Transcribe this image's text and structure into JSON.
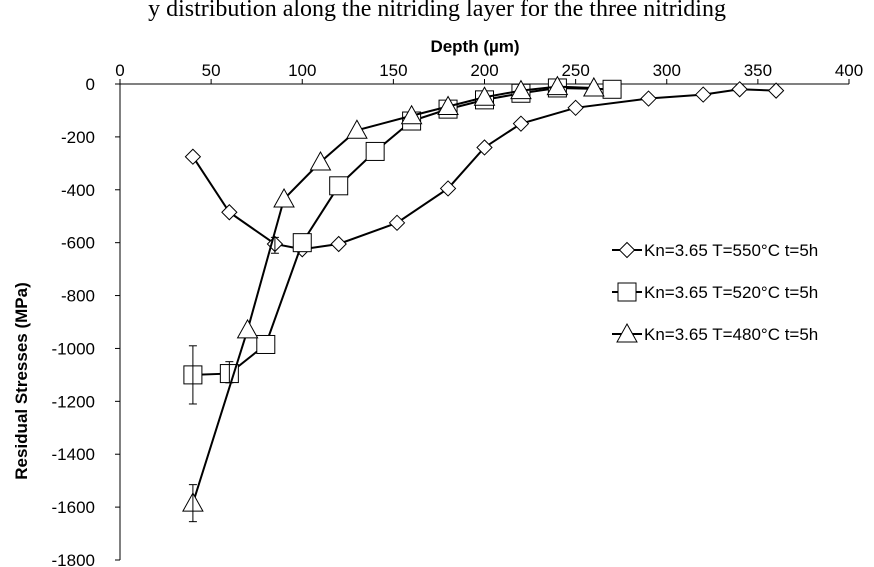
{
  "chart_data": {
    "type": "scatter",
    "title": "",
    "top_caption": "y distribution along the nitriding layer for the three nitriding",
    "xlabel": "Depth (µm)",
    "ylabel": "Residual Stresses (MPa)",
    "xlim": [
      0,
      400
    ],
    "ylim": [
      -1800,
      0
    ],
    "x_ticks": [
      0,
      50,
      100,
      150,
      200,
      250,
      300,
      350,
      400
    ],
    "y_ticks": [
      0,
      -200,
      -400,
      -600,
      -800,
      -1000,
      -1200,
      -1400,
      -1600,
      -1800
    ],
    "x_axis_position": "top",
    "grid": false,
    "legend_position": "right",
    "series": [
      {
        "name": "Kn=3.65 T=550°C t=5h",
        "marker": "diamond",
        "x": [
          40,
          60,
          85,
          100,
          120,
          152,
          180,
          200,
          220,
          250,
          290,
          320,
          340,
          360
        ],
        "y": [
          -275,
          -485,
          -605,
          -625,
          -605,
          -525,
          -395,
          -240,
          -150,
          -90,
          -55,
          -40,
          -20,
          -25
        ]
      },
      {
        "name": "Kn=3.65 T=520°C t=5h",
        "marker": "square",
        "x": [
          40,
          60,
          80,
          100,
          120,
          140,
          160,
          180,
          200,
          220,
          240,
          270
        ],
        "y": [
          -1100,
          -1095,
          -985,
          -600,
          -385,
          -255,
          -140,
          -95,
          -60,
          -35,
          -15,
          -20
        ]
      },
      {
        "name": "Kn=3.65 T=480°C t=5h",
        "marker": "triangle",
        "x": [
          40,
          70,
          90,
          110,
          130,
          160,
          180,
          200,
          220,
          240,
          260
        ],
        "y": [
          -1585,
          -930,
          -435,
          -295,
          -175,
          -120,
          -85,
          -50,
          -25,
          -10,
          -15
        ]
      }
    ],
    "error_bars": [
      {
        "series": "Kn=3.65 T=550°C t=5h",
        "x": 85,
        "low": -640,
        "high": -580
      },
      {
        "series": "Kn=3.65 T=520°C t=5h",
        "x": 40,
        "low": -1210,
        "high": -990
      },
      {
        "series": "Kn=3.65 T=520°C t=5h",
        "x": 60,
        "low": -1130,
        "high": -1050
      },
      {
        "series": "Kn=3.65 T=480°C t=5h",
        "x": 40,
        "low": -1655,
        "high": -1515
      }
    ]
  }
}
